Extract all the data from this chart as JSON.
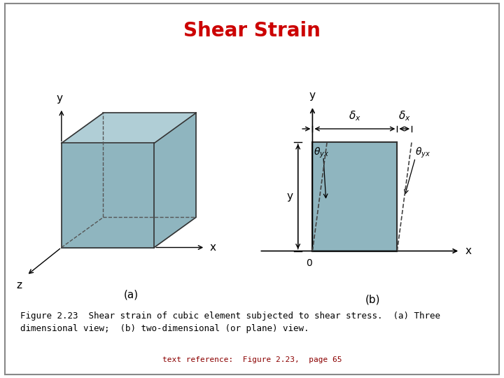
{
  "title": "Shear Strain",
  "title_color": "#cc0000",
  "title_fontsize": 20,
  "bg_color": "#ffffff",
  "border_color": "#888888",
  "fig_caption": "Figure 2.23  Shear strain of cubic element subjected to shear stress.  (a) Three\ndimensional view;  (b) two-dimensional (or plane) view.",
  "fig_caption_fontsize": 9,
  "text_ref": "text reference:  Figure 2.23,  page 65",
  "text_ref_color": "#8b0000",
  "text_ref_fontsize": 8,
  "label_a": "(a)",
  "label_b": "(b)",
  "cube_face_color": "#8fb5bf",
  "cube_top_color": "#b0ced6",
  "cube_edge_color": "#333333",
  "cube_dashed_color": "#555555",
  "rect_fill_color": "#8fb5bf",
  "rect_edge_color": "#333333",
  "arrow_color": "#000000",
  "dashed_line_color": "#444444"
}
